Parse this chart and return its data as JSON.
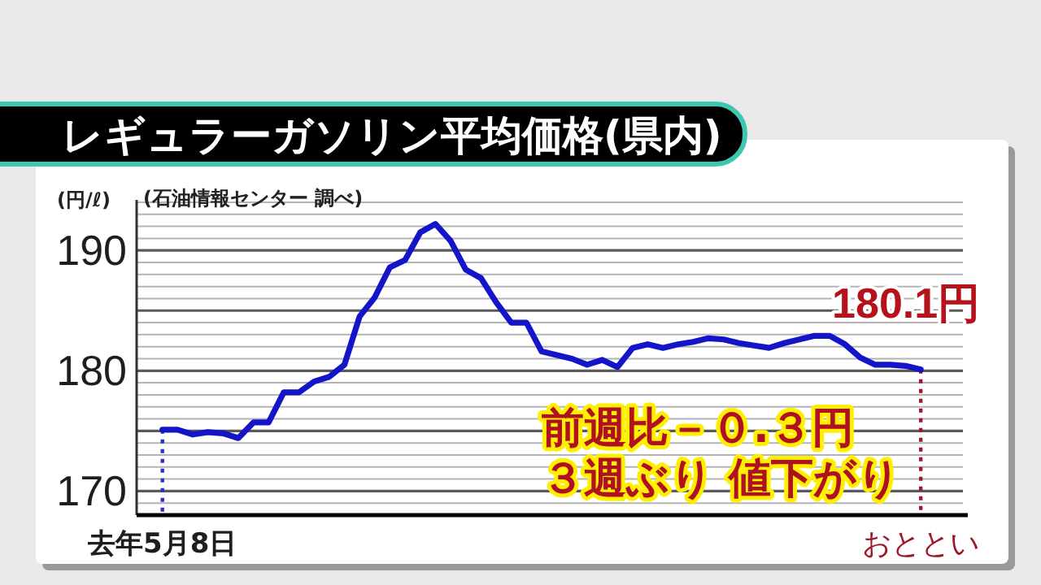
{
  "chart_data": {
    "type": "line",
    "title": "レギュラーガソリン平均価格(県内)",
    "ylabel": "(円/ℓ)",
    "annotations": [
      "(石油情報センター 調べ)",
      "前週比－０.３円",
      "３週ぶり 値下がり"
    ],
    "categories": [
      "去年5月8日",
      null,
      null,
      null,
      null,
      null,
      null,
      null,
      null,
      null,
      null,
      null,
      null,
      null,
      null,
      null,
      null,
      null,
      null,
      null,
      null,
      null,
      null,
      null,
      null,
      null,
      null,
      null,
      null,
      null,
      null,
      null,
      null,
      null,
      null,
      null,
      null,
      null,
      null,
      null,
      null,
      null,
      null,
      null,
      null,
      null,
      null,
      null,
      null,
      null,
      "おととい"
    ],
    "series": [
      {
        "color": "#1414c8",
        "values": [
          175.1,
          175.1,
          174.7,
          174.9,
          174.8,
          174.4,
          175.7,
          175.7,
          178.2,
          178.2,
          179.1,
          179.5,
          180.5,
          184.5,
          186.1,
          188.6,
          189.2,
          191.5,
          192.2,
          190.8,
          188.4,
          187.7,
          185.7,
          184.0,
          184.0,
          181.6,
          181.3,
          181.0,
          180.5,
          180.9,
          180.3,
          181.9,
          182.2,
          181.9,
          182.2,
          182.4,
          182.7,
          182.6,
          182.3,
          182.1,
          181.9,
          182.3,
          182.6,
          182.9,
          182.9,
          182.2,
          181.1,
          180.5,
          180.5,
          180.4,
          180.1
        ],
        "value_labels": [
          null,
          null,
          null,
          null,
          null,
          null,
          null,
          null,
          null,
          null,
          null,
          null,
          null,
          null,
          null,
          null,
          null,
          null,
          null,
          null,
          null,
          null,
          null,
          null,
          null,
          null,
          null,
          null,
          null,
          null,
          null,
          null,
          null,
          null,
          null,
          null,
          null,
          null,
          null,
          null,
          null,
          null,
          null,
          null,
          null,
          null,
          null,
          null,
          null,
          null,
          "180.1円"
        ]
      }
    ],
    "ylim": [
      168,
      194.2
    ],
    "yticks": [
      {
        "value": 169,
        "label": null
      },
      170,
      {
        "value": 171,
        "label": null
      },
      {
        "value": 172,
        "label": null
      },
      {
        "value": 173,
        "label": null
      },
      {
        "value": 174,
        "label": null
      },
      {
        "value": 175,
        "label": null
      },
      {
        "value": 176,
        "label": null
      },
      {
        "value": 177,
        "label": null
      },
      {
        "value": 178,
        "label": null
      },
      {
        "value": 179,
        "label": null
      },
      180,
      {
        "value": 181,
        "label": null
      },
      {
        "value": 182,
        "label": null
      },
      {
        "value": 183,
        "label": null
      },
      {
        "value": 184,
        "label": null
      },
      {
        "value": 185,
        "label": null
      },
      {
        "value": 186,
        "label": null
      },
      {
        "value": 187,
        "label": null
      },
      {
        "value": 188,
        "label": null
      },
      {
        "value": 189,
        "label": null
      },
      190,
      {
        "value": 191,
        "label": null
      },
      {
        "value": 192,
        "label": null
      },
      {
        "value": 193,
        "label": null
      },
      {
        "value": 194,
        "label": null
      }
    ],
    "grid": "y",
    "ref_lines": [
      {
        "axis": "x",
        "value": "去年5月8日",
        "color": "#3030c8",
        "line_style": "dotted"
      },
      {
        "axis": "x",
        "value": "おととい",
        "color": "#9a1830",
        "line_style": "dotted"
      }
    ]
  }
}
